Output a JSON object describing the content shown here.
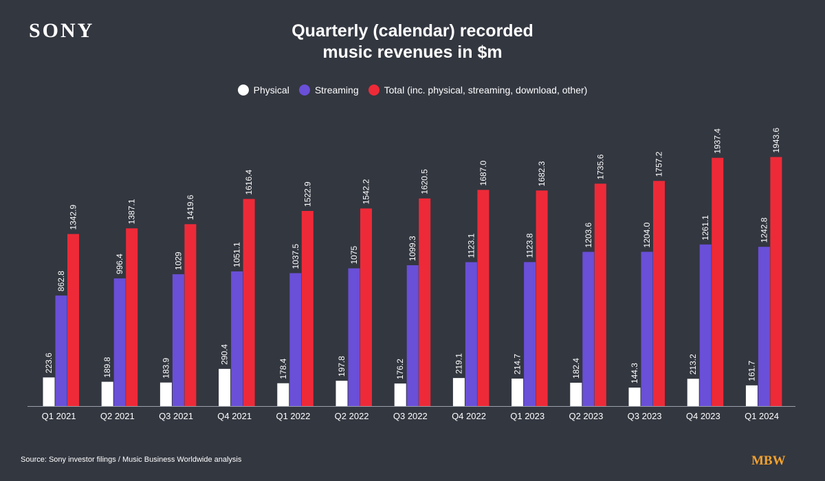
{
  "brand": {
    "logo_text": "SONY",
    "watermark_text": "MBW"
  },
  "colors": {
    "background": "#333740",
    "physical": "#ffffff",
    "streaming": "#6a4fd8",
    "total": "#ee2a38",
    "axis": "#9aa0aa",
    "watermark": "#f2a12e"
  },
  "source": "Source: Sony investor filings / Music Business Worldwide analysis",
  "chart_data": {
    "type": "bar",
    "title_lines": [
      "Quarterly (calendar) recorded",
      "music revenues in $m"
    ],
    "xlabel": "",
    "ylabel": "",
    "ylim": [
      0,
      2100
    ],
    "grid": false,
    "legend_placement": "top-center",
    "categories": [
      "Q1 2021",
      "Q2 2021",
      "Q3 2021",
      "Q4 2021",
      "Q1 2022",
      "Q2 2022",
      "Q3 2022",
      "Q4 2022",
      "Q1 2023",
      "Q2 2023",
      "Q3 2023",
      "Q4 2023",
      "Q1 2024"
    ],
    "series": [
      {
        "name": "Physical",
        "color": "#ffffff",
        "values": [
          223.6,
          189.8,
          183.9,
          290.4,
          178.4,
          197.8,
          176.2,
          219.1,
          214.7,
          182.4,
          144.3,
          213.2,
          161.7
        ],
        "labels": [
          "223.6",
          "189.8",
          "183.9",
          "290.4",
          "178.4",
          "197.8",
          "176.2",
          "219.1",
          "214.7",
          "182.4",
          "144.3",
          "213.2",
          "161.7"
        ]
      },
      {
        "name": "Streaming",
        "color": "#6a4fd8",
        "values": [
          862.8,
          996.4,
          1029,
          1051.1,
          1037.5,
          1075,
          1099.3,
          1123.1,
          1123.8,
          1203.6,
          1204.0,
          1261.1,
          1242.8
        ],
        "labels": [
          "862.8",
          "996.4",
          "1029",
          "1051.1",
          "1037.5",
          "1075",
          "1099.3",
          "1123.1",
          "1123.8",
          "1203.6",
          "1204.0",
          "1261.1",
          "1242.8"
        ]
      },
      {
        "name": "Total (inc. physical, streaming, download, other)",
        "color": "#ee2a38",
        "values": [
          1342.9,
          1387.1,
          1419.6,
          1616.4,
          1522.9,
          1542.2,
          1620.5,
          1687.0,
          1682.3,
          1735.6,
          1757.2,
          1937.4,
          1943.6
        ],
        "labels": [
          "1342.9",
          "1387.1",
          "1419.6",
          "1616.4",
          "1522.9",
          "1542.2",
          "1620.5",
          "1687.0",
          "1682.3",
          "1735.6",
          "1757.2",
          "1937.4",
          "1943.6"
        ]
      }
    ]
  }
}
